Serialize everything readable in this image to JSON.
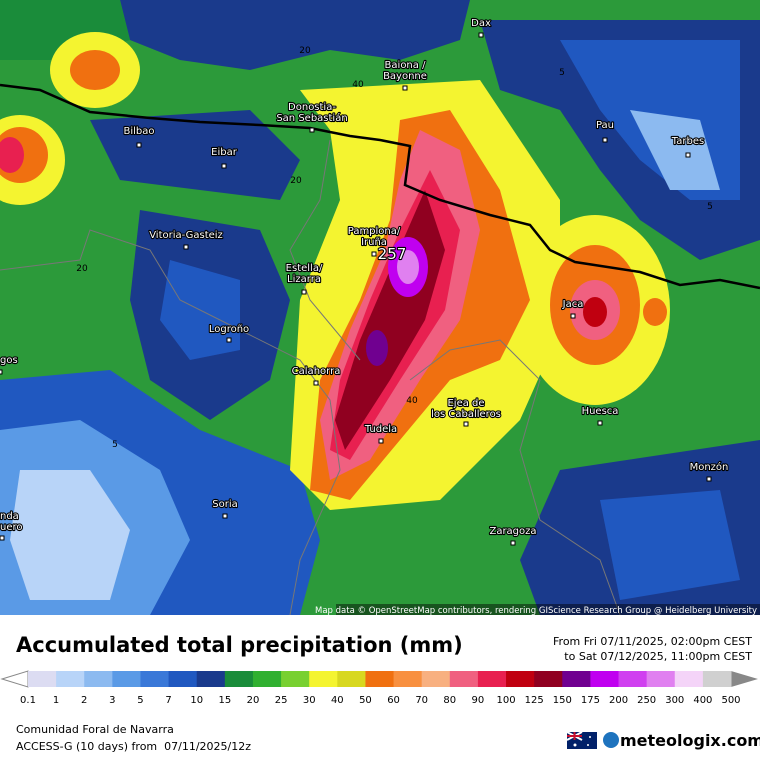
{
  "map": {
    "cities": [
      {
        "name": [
          "Dax"
        ]
      },
      {
        "name": [
          "Baiona /",
          "Bayonne"
        ]
      },
      {
        "name": [
          "Donostia-",
          "San Sebastián"
        ]
      },
      {
        "name": [
          "Pau"
        ]
      },
      {
        "name": [
          "Tarbes"
        ]
      },
      {
        "name": [
          "Bilbao"
        ]
      },
      {
        "name": [
          "Eibar"
        ]
      },
      {
        "name": [
          "Vitoria-Gasteiz"
        ]
      },
      {
        "name": [
          "Pamplona/",
          "Iruña"
        ]
      },
      {
        "name": [
          "Estella/",
          "Lizarra"
        ]
      },
      {
        "name": [
          "Jaca"
        ]
      },
      {
        "name": [
          "Logroño"
        ]
      },
      {
        "name": [
          "Calahorra"
        ]
      },
      {
        "name": [
          "Tudela"
        ]
      },
      {
        "name": [
          "Ejea de",
          "los Caballeros"
        ]
      },
      {
        "name": [
          "Huesca"
        ]
      },
      {
        "name": [
          "Monzón"
        ]
      },
      {
        "name": [
          "Soria"
        ]
      },
      {
        "name": [
          "Zaragoza"
        ]
      },
      {
        "name": [
          "gos"
        ]
      },
      {
        "name": [
          "nda",
          "uero"
        ]
      }
    ],
    "contour_labels": [
      "20",
      "40",
      "5",
      "20",
      "20",
      "40",
      "5",
      "5"
    ],
    "max_label": "257",
    "attribution": "Map data © OpenStreetMap contributors, rendering GIScience Research Group @ Heidelberg University"
  },
  "legend": {
    "title": "Accumulated total precipitation (mm)",
    "from": "From Fri 07/11/2025, 02:00pm CEST",
    "to": "to Sat 07/12/2025, 11:00pm CEST",
    "ticks": [
      0.1,
      1,
      2,
      3,
      5,
      7,
      10,
      15,
      20,
      25,
      30,
      40,
      50,
      60,
      70,
      80,
      90,
      100,
      125,
      150,
      175,
      200,
      250,
      300,
      400,
      500
    ],
    "colors": [
      "#dcdcf2",
      "#b8d4f8",
      "#8cbaf0",
      "#5a9ae6",
      "#3a78d8",
      "#2058c0",
      "#1a3a8c",
      "#1a8c3a",
      "#30b030",
      "#78d030",
      "#f4f430",
      "#d8d820",
      "#f07010",
      "#f89040",
      "#f8b080",
      "#f06080",
      "#e82050",
      "#c00010",
      "#900020",
      "#700090",
      "#c000f0",
      "#d040f0",
      "#e080f0",
      "#f4d4f8",
      "#d0d0d0"
    ]
  },
  "footer": {
    "region": "Comunidad Foral de Navarra",
    "model": "ACCESS-G (10 days) from  07/11/2025/12z",
    "brand": "meteologix.com"
  }
}
